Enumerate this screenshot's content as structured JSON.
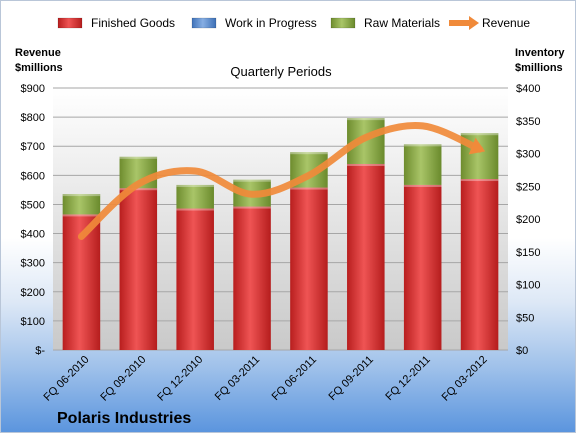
{
  "chart_data": {
    "type": "bar",
    "subtitle": "Quarterly Periods",
    "company": "Polaris Industries",
    "left_axis_title": [
      "Revenue",
      "$millions"
    ],
    "right_axis_title": [
      "Inventory",
      "$millions"
    ],
    "left_ticks": [
      "$-",
      "$100",
      "$200",
      "$300",
      "$400",
      "$500",
      "$600",
      "$700",
      "$800",
      "$900"
    ],
    "right_ticks": [
      "$0",
      "$50",
      "$100",
      "$150",
      "$200",
      "$250",
      "$300",
      "$350",
      "$400"
    ],
    "left_ylim": [
      0,
      900
    ],
    "right_ylim": [
      0,
      400
    ],
    "legend_position": "top",
    "grid": true,
    "categories": [
      "FQ 06-2010",
      "FQ 09-2010",
      "FQ 12-2010",
      "FQ 03-2011",
      "FQ 06-2011",
      "FQ 09-2011",
      "FQ 12-2011",
      "FQ 03-2012"
    ],
    "series": [
      {
        "name": "Finished Goods",
        "type": "stacked-bar",
        "axis": "right",
        "color": "#e03c3c",
        "values": [
          207,
          247,
          216,
          219,
          248,
          284,
          252,
          261
        ]
      },
      {
        "name": "Work in Progress",
        "type": "stacked-bar",
        "axis": "right",
        "color": "#5b8fd4",
        "values": [
          0,
          0,
          0,
          0,
          0,
          0,
          0,
          0
        ]
      },
      {
        "name": "Raw Materials",
        "type": "stacked-bar",
        "axis": "right",
        "color": "#8fb04a",
        "values": [
          31,
          48,
          36,
          41,
          54,
          70,
          62,
          70
        ]
      },
      {
        "name": "Revenue",
        "type": "line",
        "axis": "left",
        "color": "#f08a3a",
        "values": [
          390,
          570,
          615,
          535,
          600,
          730,
          770,
          690
        ]
      }
    ]
  }
}
